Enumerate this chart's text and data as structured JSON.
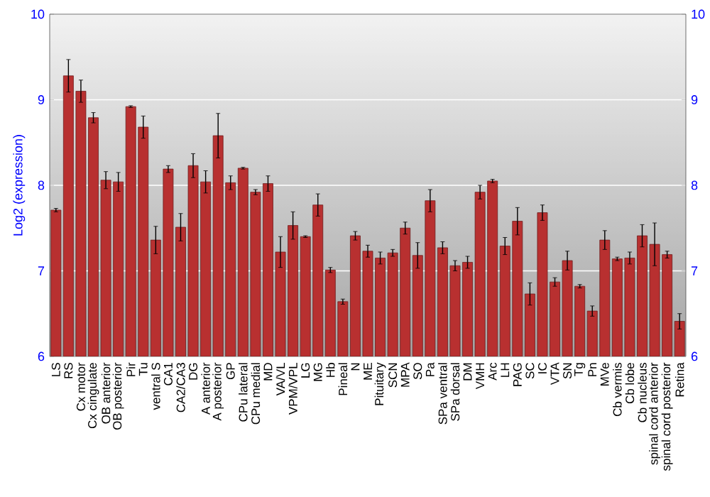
{
  "chart_data": {
    "type": "bar",
    "ylabel": "Log2 (expression)",
    "categories": [
      "LS",
      "RS",
      "Cx motor",
      "Cx cingulate",
      "OB anterior",
      "OB posterior",
      "Pir",
      "Tu",
      "ventral S",
      "CA1",
      "CA2/CA3",
      "DG",
      "A anterior",
      "A posterior",
      "GP",
      "CPu lateral",
      "CPu medial",
      "MD",
      "VA/VL",
      "VPM/VPL",
      "LG",
      "MG",
      "Hb",
      "Pineal",
      "N",
      "ME",
      "Pituitary",
      "SCN",
      "MPA",
      "SO",
      "Pa",
      "SPa ventral",
      "SPa dorsal",
      "DM",
      "VMH",
      "Arc",
      "LH",
      "PAG",
      "SC",
      "IC",
      "VTA",
      "SN",
      "Tg",
      "Pn",
      "MVe",
      "Cb vermis",
      "Cb lobe",
      "Cb nucleus",
      "spinal cord anterior",
      "spinal cord posterior",
      "Retina"
    ],
    "values": [
      7.71,
      9.28,
      9.1,
      8.79,
      8.06,
      8.04,
      8.92,
      8.68,
      7.36,
      8.19,
      7.51,
      8.23,
      8.04,
      8.58,
      8.03,
      8.2,
      7.92,
      8.02,
      7.22,
      7.53,
      7.4,
      7.77,
      7.01,
      6.64,
      7.41,
      7.23,
      7.15,
      7.21,
      7.5,
      7.18,
      7.82,
      7.27,
      7.06,
      7.1,
      7.92,
      8.05,
      7.29,
      7.58,
      6.73,
      7.68,
      6.87,
      7.12,
      6.82,
      6.53,
      7.36,
      7.14,
      7.15,
      7.41,
      7.31,
      7.19,
      6.41
    ],
    "errors": [
      0.02,
      0.19,
      0.13,
      0.06,
      0.1,
      0.11,
      0.01,
      0.13,
      0.16,
      0.04,
      0.16,
      0.14,
      0.13,
      0.26,
      0.08,
      0.01,
      0.03,
      0.09,
      0.18,
      0.16,
      0.01,
      0.13,
      0.03,
      0.03,
      0.05,
      0.07,
      0.07,
      0.04,
      0.07,
      0.15,
      0.13,
      0.07,
      0.06,
      0.07,
      0.08,
      0.02,
      0.1,
      0.16,
      0.13,
      0.09,
      0.05,
      0.11,
      0.02,
      0.06,
      0.11,
      0.02,
      0.07,
      0.13,
      0.25,
      0.04,
      0.09
    ],
    "color": "#b83030",
    "ylim": [
      6,
      10
    ],
    "yticks": [
      6,
      7,
      8,
      9,
      10
    ],
    "y2lim": [
      6,
      10
    ],
    "y2ticks": [
      6,
      7,
      8,
      9,
      10
    ],
    "grid": "y"
  }
}
